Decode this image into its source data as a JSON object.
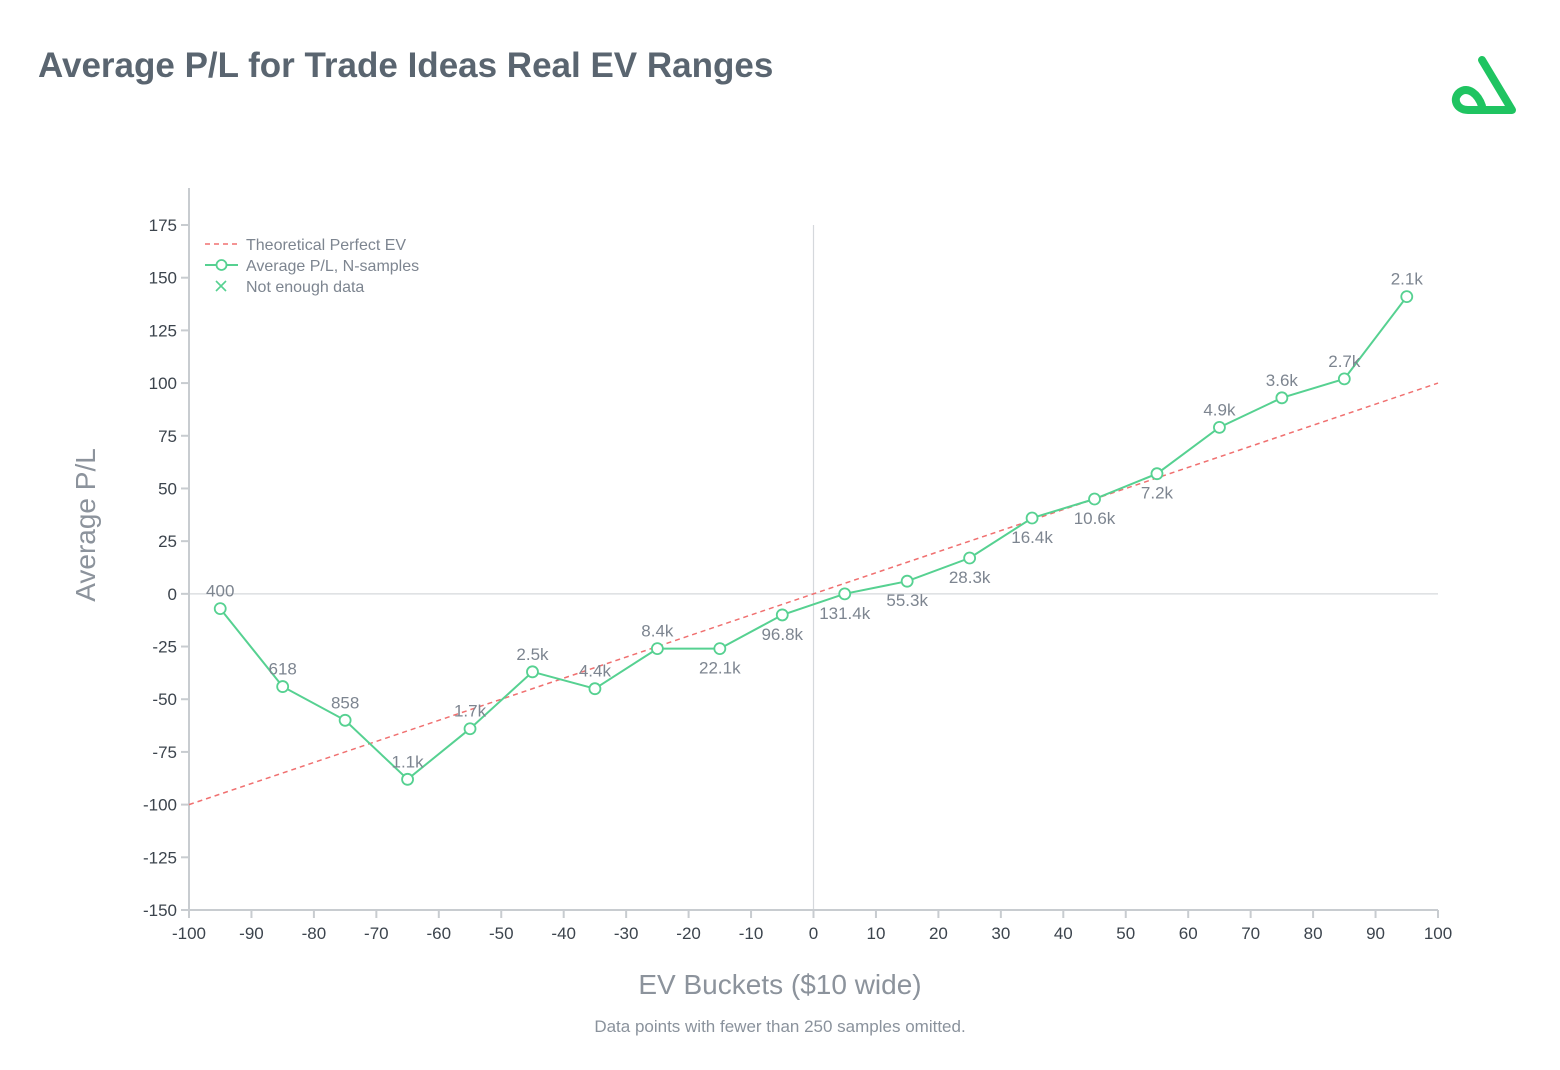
{
  "header": {
    "title": "Average P/L for Trade Ideas Real EV Ranges"
  },
  "footnote": "Data points with fewer than 250 samples omitted.",
  "colors": {
    "series_line": "#56d191",
    "theory_line": "#f07070",
    "axis": "#c8ccd0",
    "logo": "#1fc461"
  },
  "logo": {
    "icon": "triangle-loop-logo-icon"
  },
  "chart_data": {
    "type": "line",
    "xlabel": "EV Buckets ($10 wide)",
    "ylabel": "Average P/L",
    "xlim": [
      -100,
      100
    ],
    "ylim": [
      -150,
      175
    ],
    "x_ticks": [
      "-100",
      "-90",
      "-80",
      "-70",
      "-60",
      "-50",
      "-40",
      "-30",
      "-20",
      "-10",
      "0",
      "10",
      "20",
      "30",
      "40",
      "50",
      "60",
      "70",
      "80",
      "90",
      "100"
    ],
    "y_ticks": [
      "175",
      "150",
      "125",
      "100",
      "75",
      "50",
      "25",
      "0",
      "-25",
      "-50",
      "-75",
      "-100",
      "-125",
      "-150"
    ],
    "legend": {
      "position": "top-left",
      "entries": [
        {
          "label": "Theoretical Perfect EV",
          "style": "dashed"
        },
        {
          "label": "Average P/L, N-samples",
          "style": "line-circle"
        },
        {
          "label": "Not enough data",
          "style": "x-marker"
        }
      ]
    },
    "series": [
      {
        "name": "Average P/L, N-samples",
        "points": [
          {
            "x": -95,
            "y": -7,
            "label": "400"
          },
          {
            "x": -85,
            "y": -44,
            "label": "618"
          },
          {
            "x": -75,
            "y": -60,
            "label": "858"
          },
          {
            "x": -65,
            "y": -88,
            "label": "1.1k"
          },
          {
            "x": -55,
            "y": -64,
            "label": "1.7k"
          },
          {
            "x": -45,
            "y": -37,
            "label": "2.5k"
          },
          {
            "x": -35,
            "y": -45,
            "label": "4.4k"
          },
          {
            "x": -25,
            "y": -26,
            "label": "8.4k"
          },
          {
            "x": -15,
            "y": -26,
            "label": "22.1k"
          },
          {
            "x": -5,
            "y": -10,
            "label": "96.8k"
          },
          {
            "x": 5,
            "y": 0,
            "label": "131.4k"
          },
          {
            "x": 15,
            "y": 6,
            "label": "55.3k"
          },
          {
            "x": 25,
            "y": 17,
            "label": "28.3k"
          },
          {
            "x": 35,
            "y": 36,
            "label": "16.4k"
          },
          {
            "x": 45,
            "y": 45,
            "label": "10.6k"
          },
          {
            "x": 55,
            "y": 57,
            "label": "7.2k"
          },
          {
            "x": 65,
            "y": 79,
            "label": "4.9k"
          },
          {
            "x": 75,
            "y": 93,
            "label": "3.6k"
          },
          {
            "x": 85,
            "y": 102,
            "label": "2.7k"
          },
          {
            "x": 95,
            "y": 141,
            "label": "2.1k"
          }
        ]
      },
      {
        "name": "Theoretical Perfect EV",
        "points": [
          {
            "x": -100,
            "y": -100
          },
          {
            "x": 100,
            "y": 100
          }
        ]
      }
    ]
  }
}
